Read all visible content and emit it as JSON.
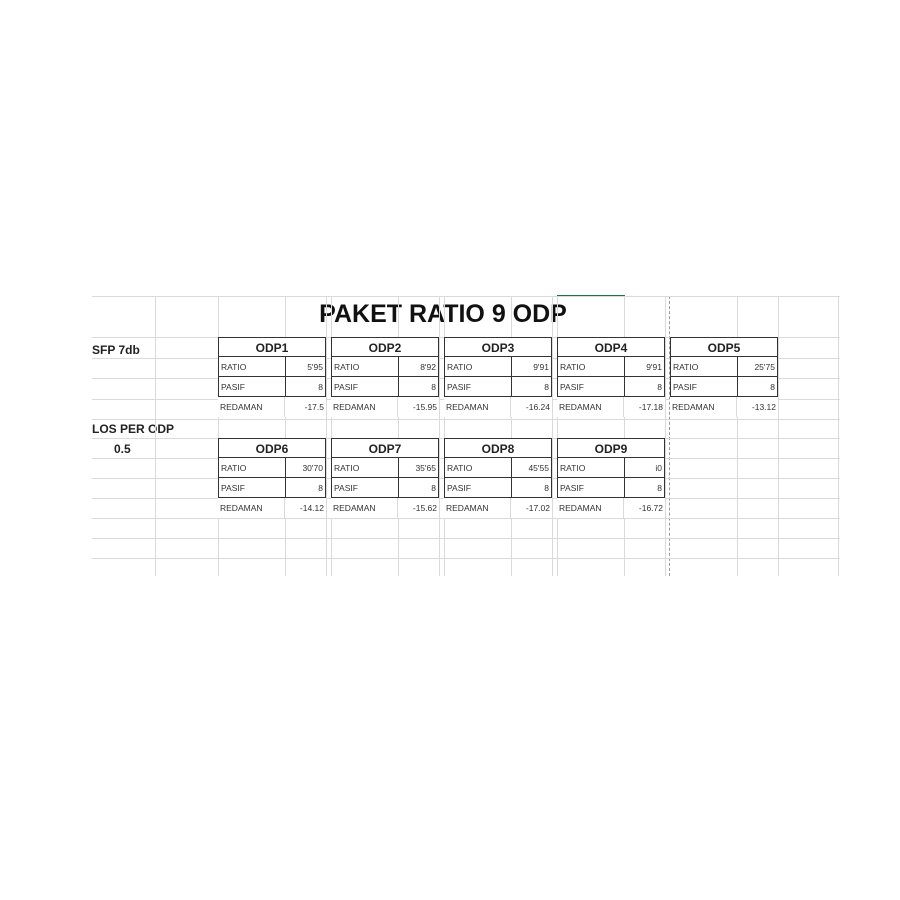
{
  "title": "PAKET  RATIO 9 ODP",
  "side_labels": {
    "sfp": "SFP 7db",
    "los": "LOS PER ODP",
    "los_value": "0.5"
  },
  "row_labels": {
    "ratio": "RATIO",
    "pasif": "PASIF",
    "redaman": "REDAMAN"
  },
  "odps": [
    {
      "name": "ODP1",
      "ratio": "5'95",
      "pasif": "8",
      "redaman": "-17.5"
    },
    {
      "name": "ODP2",
      "ratio": "8'92",
      "pasif": "8",
      "redaman": "-15.95"
    },
    {
      "name": "ODP3",
      "ratio": "9'91",
      "pasif": "8",
      "redaman": "-16.24"
    },
    {
      "name": "ODP4",
      "ratio": "9'91",
      "pasif": "8",
      "redaman": "-17.18"
    },
    {
      "name": "ODP5",
      "ratio": "25'75",
      "pasif": "8",
      "redaman": "-13.12"
    },
    {
      "name": "ODP6",
      "ratio": "30'70",
      "pasif": "8",
      "redaman": "-14.12"
    },
    {
      "name": "ODP7",
      "ratio": "35'65",
      "pasif": "8",
      "redaman": "-15.62"
    },
    {
      "name": "ODP8",
      "ratio": "45'55",
      "pasif": "8",
      "redaman": "-17.02"
    },
    {
      "name": "ODP9",
      "ratio": "i0",
      "pasif": "8",
      "redaman": "-16.72"
    }
  ]
}
